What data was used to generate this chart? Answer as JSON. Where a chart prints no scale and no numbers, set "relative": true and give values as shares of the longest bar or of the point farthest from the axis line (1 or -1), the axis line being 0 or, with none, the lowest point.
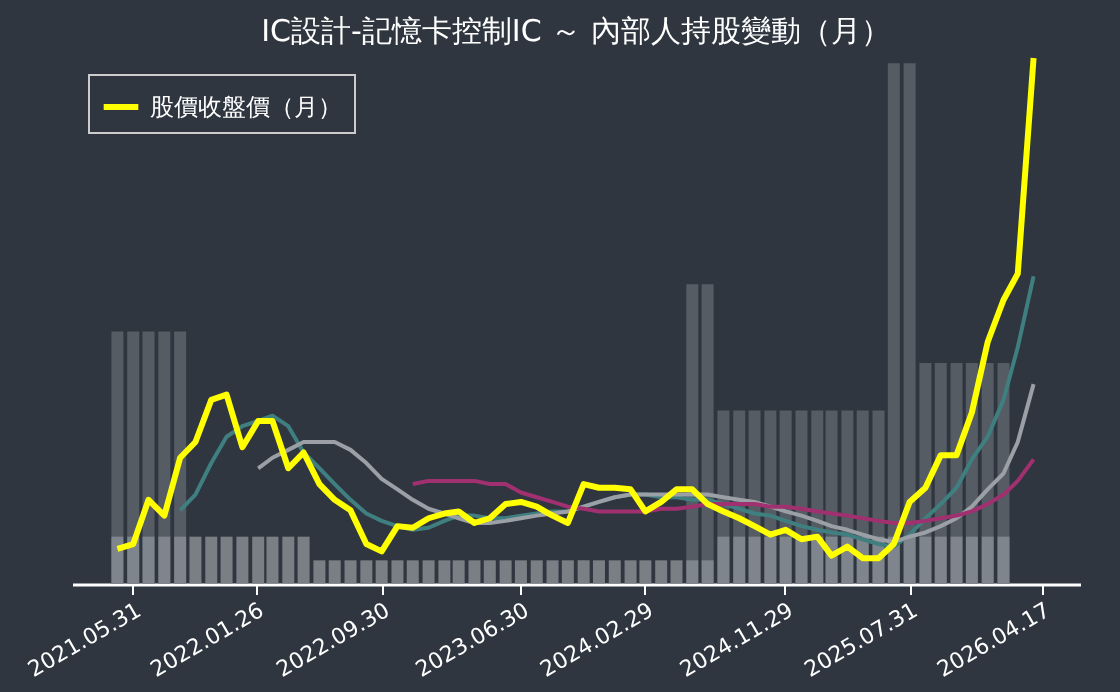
{
  "chart_data": {
    "type": "line",
    "title": "IC設計-記憶卡控制IC ～ 內部人持股變動（月）",
    "relative": true,
    "legend": "top left",
    "grid": false,
    "x": [
      "2021-05",
      "2021-06",
      "2021-07",
      "2021-08",
      "2021-09",
      "2021-10",
      "2021-11",
      "2021-12",
      "2022-01",
      "2022-02",
      "2022-03",
      "2022-04",
      "2022-05",
      "2022-06",
      "2022-07",
      "2022-08",
      "2022-09",
      "2022-10",
      "2022-11",
      "2022-12",
      "2023-01",
      "2023-02",
      "2023-03",
      "2023-04",
      "2023-05",
      "2023-06",
      "2023-07",
      "2023-08",
      "2023-09",
      "2023-10",
      "2023-11",
      "2023-12",
      "2024-01",
      "2024-02",
      "2024-03",
      "2024-04",
      "2024-05",
      "2024-06",
      "2024-07",
      "2024-08",
      "2024-09",
      "2024-10",
      "2024-11",
      "2024-12",
      "2025-01",
      "2025-02",
      "2025-03",
      "2025-04",
      "2025-05",
      "2025-06",
      "2025-07",
      "2025-08",
      "2025-09",
      "2025-10",
      "2025-11",
      "2025-12",
      "2026-01",
      "2026-02",
      "2026-03",
      "2026-04"
    ],
    "xlim": [
      "2021-02",
      "2026-07"
    ],
    "xticks": [
      {
        "value": "2021-05-31",
        "label": "2021.05.31"
      },
      {
        "value": "2022-01-26",
        "label": "2022.01.26"
      },
      {
        "value": "2022-09-30",
        "label": "2022.09.30"
      },
      {
        "value": "2023-06-30",
        "label": "2023.06.30"
      },
      {
        "value": "2024-02-29",
        "label": "2024.02.29"
      },
      {
        "value": "2024-11-29",
        "label": "2024.11.29"
      },
      {
        "value": "2025-07-31",
        "label": "2025.07.31"
      },
      {
        "value": "2026-04-17",
        "label": "2026.04.17"
      }
    ],
    "series": [
      {
        "type": "bar",
        "color": "#5c636b",
        "values": [
          0.48,
          0.48,
          0.48,
          0.48,
          0.48,
          null,
          null,
          null,
          null,
          null,
          null,
          null,
          null,
          null,
          null,
          null,
          null,
          null,
          null,
          null,
          null,
          null,
          null,
          null,
          null,
          null,
          null,
          null,
          null,
          null,
          null,
          null,
          null,
          null,
          null,
          null,
          null,
          0.57,
          0.57,
          0.33,
          0.33,
          0.33,
          0.33,
          0.33,
          0.33,
          0.33,
          0.33,
          0.33,
          0.33,
          0.33,
          0.99,
          0.99,
          0.42,
          0.42,
          0.42,
          0.42,
          0.42,
          0.42,
          null,
          null
        ]
      },
      {
        "type": "bar",
        "color": "#878c93",
        "values": [
          0.09,
          0.09,
          0.09,
          0.09,
          0.09,
          0.09,
          0.09,
          0.09,
          0.09,
          0.09,
          0.09,
          0.09,
          0.09,
          0.045,
          0.045,
          0.045,
          0.045,
          0.045,
          0.045,
          0.045,
          0.045,
          0.045,
          0.045,
          0.045,
          0.045,
          0.045,
          0.045,
          0.045,
          0.045,
          0.045,
          0.045,
          0.045,
          0.045,
          0.045,
          0.045,
          0.045,
          0.045,
          0.045,
          0.045,
          0.09,
          0.09,
          0.09,
          0.09,
          0.09,
          0.09,
          0.09,
          0.09,
          0.09,
          0.09,
          0.09,
          0.09,
          0.09,
          0.09,
          0.09,
          0.09,
          0.09,
          0.09,
          0.09,
          null,
          null
        ]
      },
      {
        "color": "#3f7f80",
        "values": [
          null,
          null,
          null,
          null,
          0.14,
          0.17,
          0.23,
          0.28,
          0.3,
          0.31,
          0.32,
          0.3,
          0.25,
          0.22,
          0.19,
          0.16,
          0.134,
          0.12,
          0.11,
          0.103,
          0.107,
          0.12,
          0.13,
          0.13,
          0.125,
          0.125,
          0.13,
          0.134,
          0.138,
          0.138,
          0.147,
          0.156,
          0.165,
          0.17,
          0.17,
          0.165,
          0.165,
          0.16,
          0.16,
          0.152,
          0.143,
          0.134,
          0.13,
          0.12,
          0.11,
          0.103,
          0.098,
          0.094,
          0.085,
          0.076,
          0.071,
          0.094,
          0.125,
          0.152,
          0.183,
          0.237,
          0.28,
          0.35,
          0.45,
          0.585
        ]
      },
      {
        "color": "#9aa0a6",
        "values": [
          null,
          null,
          null,
          null,
          null,
          null,
          null,
          null,
          null,
          0.22,
          0.24,
          0.255,
          0.27,
          0.27,
          0.27,
          0.255,
          0.23,
          0.2,
          0.18,
          0.16,
          0.143,
          0.134,
          0.125,
          0.116,
          0.116,
          0.12,
          0.125,
          0.13,
          0.134,
          0.138,
          0.147,
          0.156,
          0.165,
          0.17,
          0.17,
          0.17,
          0.17,
          0.17,
          0.17,
          0.165,
          0.16,
          0.156,
          0.147,
          0.138,
          0.13,
          0.12,
          0.11,
          0.103,
          0.094,
          0.085,
          0.08,
          0.09,
          0.098,
          0.11,
          0.125,
          0.147,
          0.18,
          0.21,
          0.27,
          0.38
        ]
      },
      {
        "color": "#a0306f",
        "values": [
          null,
          null,
          null,
          null,
          null,
          null,
          null,
          null,
          null,
          null,
          null,
          null,
          null,
          null,
          null,
          null,
          null,
          null,
          null,
          0.19,
          0.196,
          0.196,
          0.196,
          0.196,
          0.19,
          0.19,
          0.174,
          0.165,
          0.156,
          0.147,
          0.143,
          0.138,
          0.138,
          0.138,
          0.138,
          0.143,
          0.143,
          0.147,
          0.152,
          0.152,
          0.152,
          0.152,
          0.147,
          0.147,
          0.143,
          0.138,
          0.134,
          0.13,
          0.125,
          0.12,
          0.116,
          0.116,
          0.12,
          0.125,
          0.13,
          0.138,
          0.152,
          0.17,
          0.196,
          0.237
        ]
      },
      {
        "name": "股價收盤價（月）",
        "color": "#ffff00",
        "values": [
          0.067,
          0.076,
          0.16,
          0.13,
          0.24,
          0.27,
          0.35,
          0.36,
          0.26,
          0.31,
          0.31,
          0.22,
          0.25,
          0.19,
          0.16,
          0.14,
          0.076,
          0.062,
          0.11,
          0.107,
          0.125,
          0.134,
          0.138,
          0.116,
          0.125,
          0.152,
          0.156,
          0.147,
          0.13,
          0.116,
          0.19,
          0.183,
          0.183,
          0.18,
          0.138,
          0.156,
          0.18,
          0.18,
          0.152,
          0.138,
          0.125,
          0.11,
          0.094,
          0.103,
          0.085,
          0.09,
          0.054,
          0.071,
          0.049,
          0.049,
          0.076,
          0.156,
          0.183,
          0.245,
          0.245,
          0.326,
          0.46,
          0.54,
          0.59,
          1.0
        ]
      }
    ]
  }
}
